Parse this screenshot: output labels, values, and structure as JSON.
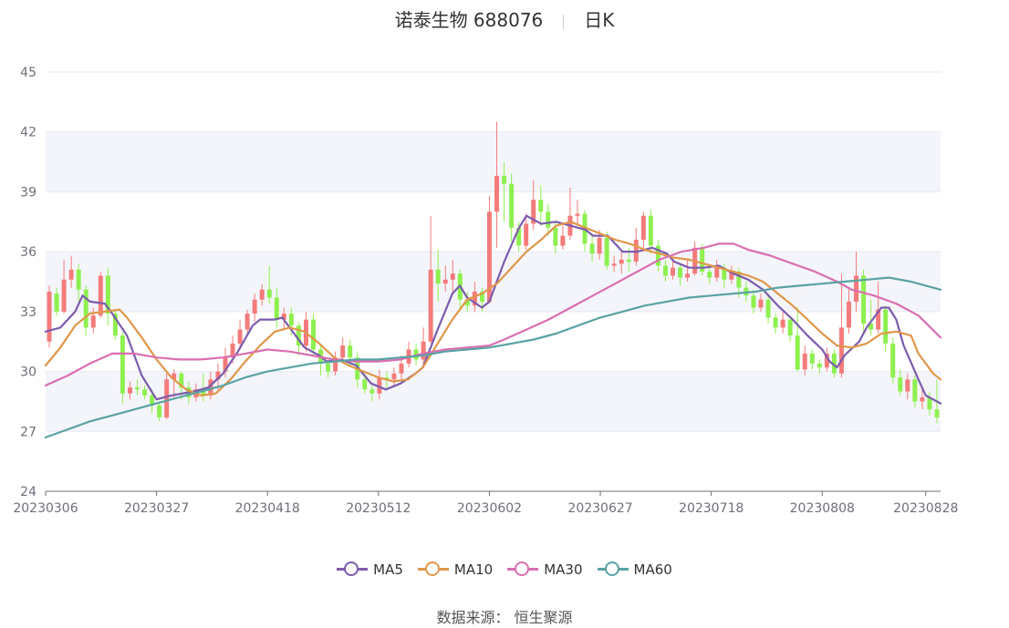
{
  "title": {
    "stock": "诺泰生物 688076",
    "period": "日K"
  },
  "footer": {
    "source_label": "数据来源：",
    "source_name": "恒生聚源"
  },
  "colors": {
    "up": "#f47b7b",
    "down": "#8ef04f",
    "grid": "#e6e9f2",
    "band": "#f4f5fa",
    "axis": "#6e7079"
  },
  "chart_data": {
    "type": "candlestick",
    "ylim": [
      24,
      45
    ],
    "yticks": [
      24,
      27,
      30,
      33,
      36,
      39,
      42,
      45
    ],
    "xtick_labels": [
      "20230306",
      "20230327",
      "20230418",
      "20230512",
      "20230602",
      "20230627",
      "20230718",
      "20230808",
      "20230828"
    ],
    "xtick_index": [
      0,
      15,
      30,
      45,
      60,
      75,
      90,
      105,
      119
    ],
    "legend": [
      {
        "name": "MA5",
        "color": "#7c5cad"
      },
      {
        "name": "MA10",
        "color": "#e0974a"
      },
      {
        "name": "MA30",
        "color": "#d96fb0"
      },
      {
        "name": "MA60",
        "color": "#5aa2a3"
      }
    ],
    "candles": [
      [
        31.5,
        34.0,
        34.3,
        31.2
      ],
      [
        33.9,
        33.0,
        34.2,
        32.8
      ],
      [
        33.0,
        34.6,
        35.6,
        32.9
      ],
      [
        34.6,
        35.1,
        35.8,
        34.2
      ],
      [
        35.1,
        34.1,
        35.4,
        33.4
      ],
      [
        34.1,
        32.2,
        34.3,
        31.8
      ],
      [
        32.2,
        32.8,
        33.2,
        31.9
      ],
      [
        32.8,
        34.8,
        35.0,
        32.7
      ],
      [
        34.8,
        32.9,
        35.2,
        32.3
      ],
      [
        32.9,
        31.8,
        33.1,
        31.6
      ],
      [
        31.8,
        28.9,
        32.0,
        28.4
      ],
      [
        28.9,
        29.2,
        29.5,
        28.6
      ],
      [
        29.2,
        29.1,
        29.6,
        28.8
      ],
      [
        29.1,
        28.8,
        29.3,
        28.6
      ],
      [
        28.8,
        28.3,
        29.1,
        27.9
      ],
      [
        28.3,
        27.7,
        28.5,
        27.5
      ],
      [
        27.7,
        29.6,
        29.9,
        27.6
      ],
      [
        29.6,
        29.9,
        30.1,
        28.7
      ],
      [
        29.9,
        29.2,
        30.0,
        28.6
      ],
      [
        29.2,
        28.7,
        29.5,
        28.4
      ],
      [
        28.7,
        29.1,
        29.4,
        28.5
      ],
      [
        29.1,
        28.8,
        29.9,
        28.5
      ],
      [
        28.8,
        29.6,
        30.0,
        28.6
      ],
      [
        29.6,
        30.0,
        30.4,
        29.1
      ],
      [
        30.0,
        30.7,
        31.2,
        29.7
      ],
      [
        30.7,
        31.4,
        31.8,
        30.4
      ],
      [
        31.4,
        32.1,
        32.6,
        31.1
      ],
      [
        32.1,
        32.9,
        33.1,
        31.8
      ],
      [
        32.9,
        33.6,
        33.9,
        32.5
      ],
      [
        33.6,
        34.1,
        34.4,
        33.3
      ],
      [
        34.1,
        33.7,
        35.3,
        33.4
      ],
      [
        33.7,
        32.6,
        34.2,
        32.2
      ],
      [
        32.6,
        32.9,
        33.2,
        32.1
      ],
      [
        32.9,
        32.3,
        33.2,
        31.8
      ],
      [
        32.3,
        31.3,
        32.5,
        30.8
      ],
      [
        31.3,
        32.6,
        33.0,
        31.0
      ],
      [
        32.6,
        31.1,
        32.9,
        30.8
      ],
      [
        31.1,
        30.4,
        31.4,
        29.8
      ],
      [
        30.4,
        30.0,
        30.6,
        29.7
      ],
      [
        30.0,
        30.7,
        31.0,
        29.8
      ],
      [
        30.7,
        31.3,
        31.7,
        30.4
      ],
      [
        31.3,
        30.7,
        31.6,
        30.2
      ],
      [
        30.7,
        29.6,
        31.0,
        29.2
      ],
      [
        29.6,
        29.1,
        29.9,
        28.9
      ],
      [
        29.1,
        28.9,
        29.3,
        28.5
      ],
      [
        28.9,
        29.7,
        30.1,
        28.6
      ],
      [
        29.7,
        29.6,
        30.0,
        29.1
      ],
      [
        29.6,
        29.9,
        30.2,
        29.3
      ],
      [
        29.9,
        30.4,
        30.8,
        29.6
      ],
      [
        30.4,
        31.1,
        31.5,
        30.2
      ],
      [
        31.1,
        30.6,
        31.4,
        30.3
      ],
      [
        30.6,
        31.5,
        32.2,
        30.4
      ],
      [
        31.5,
        35.1,
        37.8,
        31.4
      ],
      [
        35.1,
        34.4,
        36.1,
        33.5
      ],
      [
        34.4,
        34.6,
        35.3,
        34.0
      ],
      [
        34.6,
        34.9,
        35.6,
        34.0
      ],
      [
        34.9,
        33.6,
        35.1,
        33.2
      ],
      [
        33.6,
        33.3,
        34.0,
        33.0
      ],
      [
        33.3,
        34.0,
        34.5,
        33.0
      ],
      [
        34.0,
        33.5,
        34.2,
        33.0
      ],
      [
        33.5,
        38.0,
        38.8,
        33.4
      ],
      [
        38.0,
        39.8,
        42.5,
        36.2
      ],
      [
        39.8,
        39.4,
        40.5,
        37.5
      ],
      [
        39.4,
        37.2,
        39.9,
        36.5
      ],
      [
        37.2,
        36.3,
        37.5,
        36.0
      ],
      [
        36.3,
        37.4,
        37.9,
        36.1
      ],
      [
        37.4,
        38.6,
        39.6,
        37.1
      ],
      [
        38.6,
        38.0,
        39.3,
        37.3
      ],
      [
        38.0,
        37.2,
        38.4,
        36.8
      ],
      [
        37.2,
        36.3,
        37.5,
        35.9
      ],
      [
        36.3,
        36.8,
        37.3,
        36.1
      ],
      [
        36.8,
        37.8,
        39.2,
        36.6
      ],
      [
        37.8,
        37.9,
        38.6,
        37.4
      ],
      [
        37.9,
        36.4,
        38.1,
        36.0
      ],
      [
        36.4,
        35.9,
        36.8,
        35.5
      ],
      [
        35.9,
        36.7,
        37.1,
        35.6
      ],
      [
        36.7,
        35.3,
        37.0,
        35.1
      ],
      [
        35.3,
        35.4,
        35.8,
        35.0
      ],
      [
        35.4,
        35.6,
        36.0,
        34.9
      ],
      [
        35.6,
        35.5,
        36.2,
        35.0
      ],
      [
        35.5,
        36.6,
        37.2,
        35.3
      ],
      [
        36.6,
        37.8,
        38.0,
        36.0
      ],
      [
        37.8,
        36.3,
        38.1,
        35.9
      ],
      [
        36.3,
        35.3,
        36.6,
        35.0
      ],
      [
        35.3,
        34.8,
        35.6,
        34.5
      ],
      [
        34.8,
        35.2,
        35.5,
        34.6
      ],
      [
        35.2,
        34.7,
        35.4,
        34.3
      ],
      [
        34.7,
        34.9,
        35.6,
        34.5
      ],
      [
        34.9,
        36.2,
        36.5,
        34.8
      ],
      [
        36.2,
        35.0,
        36.4,
        34.8
      ],
      [
        35.0,
        34.7,
        35.3,
        34.4
      ],
      [
        34.7,
        35.2,
        35.6,
        34.5
      ],
      [
        35.2,
        34.6,
        35.4,
        34.2
      ],
      [
        34.6,
        35.0,
        35.3,
        34.4
      ],
      [
        35.0,
        34.2,
        35.2,
        33.7
      ],
      [
        34.2,
        33.8,
        34.5,
        33.5
      ],
      [
        33.8,
        33.2,
        34.1,
        32.9
      ],
      [
        33.2,
        33.6,
        33.9,
        33.0
      ],
      [
        33.6,
        32.7,
        33.8,
        32.4
      ],
      [
        32.7,
        32.2,
        32.9,
        31.9
      ],
      [
        32.2,
        32.6,
        33.0,
        31.9
      ],
      [
        32.6,
        31.8,
        32.8,
        31.5
      ],
      [
        31.8,
        30.1,
        33.2,
        30.0
      ],
      [
        30.1,
        30.9,
        31.3,
        29.8
      ],
      [
        30.9,
        30.4,
        31.1,
        30.1
      ],
      [
        30.4,
        30.2,
        30.6,
        29.9
      ],
      [
        30.2,
        30.9,
        31.2,
        30.0
      ],
      [
        30.9,
        29.9,
        31.1,
        29.7
      ],
      [
        29.9,
        32.2,
        34.9,
        29.7
      ],
      [
        32.2,
        33.5,
        34.2,
        31.9
      ],
      [
        33.5,
        34.8,
        36.0,
        33.0
      ],
      [
        34.8,
        32.4,
        35.1,
        32.0
      ],
      [
        32.4,
        32.1,
        33.6,
        31.8
      ],
      [
        32.1,
        33.1,
        34.5,
        31.9
      ],
      [
        33.1,
        31.4,
        33.3,
        31.0
      ],
      [
        31.4,
        29.7,
        31.7,
        29.4
      ],
      [
        29.7,
        29.0,
        30.1,
        28.8
      ],
      [
        29.0,
        29.6,
        29.9,
        28.6
      ],
      [
        29.6,
        28.5,
        29.8,
        28.2
      ],
      [
        28.5,
        28.7,
        29.1,
        28.1
      ],
      [
        28.7,
        28.1,
        29.0,
        27.8
      ],
      [
        28.1,
        27.7,
        29.6,
        27.4
      ]
    ],
    "ma5": [
      [
        0,
        32.0
      ],
      [
        2,
        32.2
      ],
      [
        4,
        33.0
      ],
      [
        5,
        33.8
      ],
      [
        6,
        33.5
      ],
      [
        8,
        33.4
      ],
      [
        9,
        32.9
      ],
      [
        11,
        31.8
      ],
      [
        13,
        29.8
      ],
      [
        15,
        28.6
      ],
      [
        17,
        28.8
      ],
      [
        20,
        29.0
      ],
      [
        22,
        29.2
      ],
      [
        24,
        29.9
      ],
      [
        26,
        31.0
      ],
      [
        28,
        32.3
      ],
      [
        29,
        32.6
      ],
      [
        31,
        32.6
      ],
      [
        32,
        32.7
      ],
      [
        33,
        32.2
      ],
      [
        35,
        31.2
      ],
      [
        37,
        30.8
      ],
      [
        38,
        30.5
      ],
      [
        40,
        30.6
      ],
      [
        42,
        30.3
      ],
      [
        44,
        29.4
      ],
      [
        46,
        29.1
      ],
      [
        48,
        29.4
      ],
      [
        50,
        29.9
      ],
      [
        51,
        30.2
      ],
      [
        53,
        32.1
      ],
      [
        55,
        33.9
      ],
      [
        56,
        34.3
      ],
      [
        57,
        33.7
      ],
      [
        59,
        33.2
      ],
      [
        60,
        33.5
      ],
      [
        62,
        35.5
      ],
      [
        64,
        37.2
      ],
      [
        65,
        37.8
      ],
      [
        67,
        37.4
      ],
      [
        69,
        37.5
      ],
      [
        71,
        37.3
      ],
      [
        73,
        37.1
      ],
      [
        74,
        36.8
      ],
      [
        76,
        36.8
      ],
      [
        78,
        36.0
      ],
      [
        80,
        36.0
      ],
      [
        82,
        36.2
      ],
      [
        84,
        35.9
      ],
      [
        85,
        35.5
      ],
      [
        87,
        35.2
      ],
      [
        89,
        35.2
      ],
      [
        91,
        35.3
      ],
      [
        93,
        34.9
      ],
      [
        95,
        34.6
      ],
      [
        97,
        34.1
      ],
      [
        99,
        33.3
      ],
      [
        101,
        32.6
      ],
      [
        103,
        31.8
      ],
      [
        105,
        31.1
      ],
      [
        106,
        30.5
      ],
      [
        107,
        30.2
      ],
      [
        108,
        30.8
      ],
      [
        110,
        31.5
      ],
      [
        111,
        32.2
      ],
      [
        113,
        33.2
      ],
      [
        114,
        33.2
      ],
      [
        115,
        32.6
      ],
      [
        116,
        31.3
      ],
      [
        118,
        29.6
      ],
      [
        119,
        28.8
      ],
      [
        121,
        28.4
      ]
    ],
    "ma10": [
      [
        0,
        30.3
      ],
      [
        2,
        31.2
      ],
      [
        4,
        32.3
      ],
      [
        6,
        32.9
      ],
      [
        8,
        33.0
      ],
      [
        10,
        33.1
      ],
      [
        11,
        32.7
      ],
      [
        13,
        31.7
      ],
      [
        15,
        30.6
      ],
      [
        17,
        29.7
      ],
      [
        19,
        29.1
      ],
      [
        21,
        28.8
      ],
      [
        23,
        28.9
      ],
      [
        25,
        29.6
      ],
      [
        27,
        30.5
      ],
      [
        29,
        31.3
      ],
      [
        31,
        32.0
      ],
      [
        33,
        32.2
      ],
      [
        35,
        32.0
      ],
      [
        37,
        31.4
      ],
      [
        39,
        30.7
      ],
      [
        41,
        30.3
      ],
      [
        43,
        30.0
      ],
      [
        45,
        29.7
      ],
      [
        47,
        29.5
      ],
      [
        49,
        29.6
      ],
      [
        51,
        30.2
      ],
      [
        53,
        31.4
      ],
      [
        55,
        32.6
      ],
      [
        57,
        33.6
      ],
      [
        59,
        33.9
      ],
      [
        61,
        34.4
      ],
      [
        63,
        35.2
      ],
      [
        65,
        36.0
      ],
      [
        67,
        36.6
      ],
      [
        69,
        37.3
      ],
      [
        71,
        37.5
      ],
      [
        73,
        37.2
      ],
      [
        75,
        36.9
      ],
      [
        77,
        36.6
      ],
      [
        79,
        36.4
      ],
      [
        81,
        36.1
      ],
      [
        83,
        35.9
      ],
      [
        85,
        35.7
      ],
      [
        87,
        35.6
      ],
      [
        89,
        35.4
      ],
      [
        91,
        35.2
      ],
      [
        93,
        35.0
      ],
      [
        95,
        34.8
      ],
      [
        97,
        34.5
      ],
      [
        99,
        33.9
      ],
      [
        101,
        33.3
      ],
      [
        103,
        32.6
      ],
      [
        105,
        31.9
      ],
      [
        107,
        31.3
      ],
      [
        109,
        31.2
      ],
      [
        111,
        31.4
      ],
      [
        113,
        31.9
      ],
      [
        115,
        32.0
      ],
      [
        117,
        31.8
      ],
      [
        118,
        30.9
      ],
      [
        120,
        29.9
      ],
      [
        121,
        29.6
      ]
    ],
    "ma30": [
      [
        0,
        29.3
      ],
      [
        3,
        29.8
      ],
      [
        6,
        30.4
      ],
      [
        9,
        30.9
      ],
      [
        12,
        30.9
      ],
      [
        15,
        30.7
      ],
      [
        18,
        30.6
      ],
      [
        21,
        30.6
      ],
      [
        24,
        30.7
      ],
      [
        27,
        30.9
      ],
      [
        30,
        31.1
      ],
      [
        33,
        31.0
      ],
      [
        36,
        30.8
      ],
      [
        39,
        30.6
      ],
      [
        42,
        30.5
      ],
      [
        45,
        30.5
      ],
      [
        48,
        30.6
      ],
      [
        51,
        30.9
      ],
      [
        54,
        31.1
      ],
      [
        57,
        31.2
      ],
      [
        60,
        31.3
      ],
      [
        62,
        31.6
      ],
      [
        65,
        32.1
      ],
      [
        68,
        32.6
      ],
      [
        71,
        33.2
      ],
      [
        74,
        33.8
      ],
      [
        77,
        34.4
      ],
      [
        80,
        35.0
      ],
      [
        83,
        35.6
      ],
      [
        86,
        36.0
      ],
      [
        89,
        36.2
      ],
      [
        91,
        36.4
      ],
      [
        93,
        36.4
      ],
      [
        95,
        36.1
      ],
      [
        98,
        35.8
      ],
      [
        101,
        35.4
      ],
      [
        104,
        35.0
      ],
      [
        107,
        34.5
      ],
      [
        109,
        34.1
      ],
      [
        112,
        33.8
      ],
      [
        115,
        33.4
      ],
      [
        118,
        32.8
      ],
      [
        121,
        31.7
      ]
    ],
    "ma60": [
      [
        0,
        26.7
      ],
      [
        3,
        27.1
      ],
      [
        6,
        27.5
      ],
      [
        9,
        27.8
      ],
      [
        12,
        28.1
      ],
      [
        15,
        28.4
      ],
      [
        18,
        28.7
      ],
      [
        21,
        29.0
      ],
      [
        24,
        29.3
      ],
      [
        27,
        29.7
      ],
      [
        30,
        30.0
      ],
      [
        33,
        30.2
      ],
      [
        36,
        30.4
      ],
      [
        39,
        30.5
      ],
      [
        42,
        30.6
      ],
      [
        45,
        30.6
      ],
      [
        48,
        30.7
      ],
      [
        51,
        30.8
      ],
      [
        54,
        31.0
      ],
      [
        57,
        31.1
      ],
      [
        60,
        31.2
      ],
      [
        63,
        31.4
      ],
      [
        66,
        31.6
      ],
      [
        69,
        31.9
      ],
      [
        72,
        32.3
      ],
      [
        75,
        32.7
      ],
      [
        78,
        33.0
      ],
      [
        81,
        33.3
      ],
      [
        84,
        33.5
      ],
      [
        87,
        33.7
      ],
      [
        90,
        33.8
      ],
      [
        93,
        33.9
      ],
      [
        96,
        34.0
      ],
      [
        99,
        34.2
      ],
      [
        102,
        34.3
      ],
      [
        105,
        34.4
      ],
      [
        108,
        34.5
      ],
      [
        111,
        34.6
      ],
      [
        114,
        34.7
      ],
      [
        117,
        34.5
      ],
      [
        119,
        34.3
      ],
      [
        121,
        34.1
      ]
    ]
  }
}
